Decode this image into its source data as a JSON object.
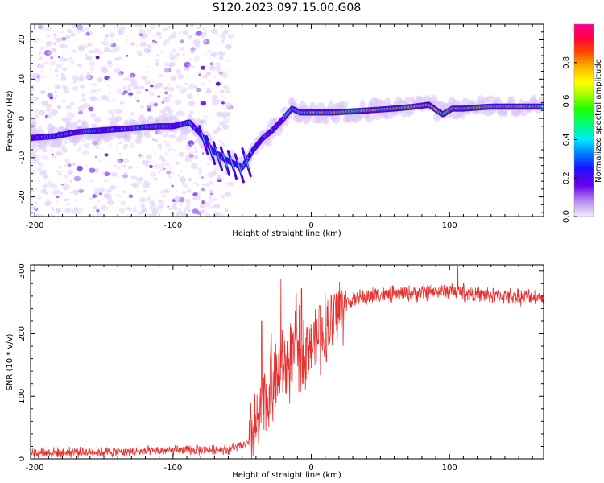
{
  "title": "S120.2023.097.15.00.G08",
  "chart_data": [
    {
      "type": "heatmap",
      "xlabel": "Height of straight line (km)",
      "ylabel": "Frequency (Hz)",
      "xlim": [
        -203,
        168
      ],
      "ylim": [
        -25,
        24
      ],
      "xticks": [
        -200,
        -100,
        0,
        100
      ],
      "xtick_labels": [
        "-200",
        "-100",
        "0",
        "100"
      ],
      "yticks": [
        -20,
        -10,
        0,
        10,
        20
      ],
      "ytick_labels": [
        "-20",
        "-10",
        "0",
        "10",
        "20"
      ],
      "colorbar": {
        "label": "Normalized spectral amplitude",
        "range": [
          0,
          1
        ],
        "ticks": [
          0.0,
          0.2,
          0.4,
          0.6,
          0.8
        ],
        "tick_labels": [
          "0.0",
          "0.2",
          "0.4",
          "0.6",
          "0.8"
        ]
      },
      "ridge": {
        "x": [
          -203,
          -185,
          -170,
          -150,
          -130,
          -110,
          -100,
          -88,
          -80,
          -72,
          -62,
          -50,
          -42,
          -35,
          -28,
          -20,
          -14,
          -8,
          0,
          15,
          40,
          60,
          75,
          85,
          95,
          102,
          110,
          130,
          150,
          168
        ],
        "y": [
          -5,
          -4.5,
          -3.5,
          -3,
          -2.5,
          -2,
          -2,
          -1,
          -4,
          -8,
          -10.5,
          -12.5,
          -8,
          -5,
          -3,
          0,
          2.5,
          1.5,
          1.5,
          1.5,
          2,
          2.5,
          3,
          3.5,
          1,
          2.5,
          2.5,
          3,
          3,
          3
        ]
      }
    },
    {
      "type": "line",
      "xlabel": "Height of straight line (km)",
      "ylabel": "SNR (10 * v/v)",
      "xlim": [
        -203,
        168
      ],
      "ylim": [
        0,
        310
      ],
      "xticks": [
        -200,
        -100,
        0,
        100
      ],
      "xtick_labels": [
        "-200",
        "-100",
        "0",
        "100"
      ],
      "yticks": [
        0,
        100,
        200,
        300
      ],
      "ytick_labels": [
        "0",
        "100",
        "200",
        "300"
      ],
      "color": "#e8312f",
      "trend": {
        "x": [
          -203,
          -150,
          -100,
          -60,
          -45,
          -38,
          -32,
          -25,
          -18,
          -10,
          0,
          10,
          20,
          30,
          50,
          80,
          100,
          120,
          140,
          168
        ],
        "y": [
          10,
          11,
          13,
          15,
          25,
          60,
          100,
          130,
          150,
          170,
          185,
          205,
          240,
          255,
          262,
          265,
          268,
          262,
          260,
          258
        ]
      },
      "spikes": [
        {
          "x": -36,
          "y": 220
        },
        {
          "x": -29,
          "y": 200
        },
        {
          "x": -22,
          "y": 288
        },
        {
          "x": -11,
          "y": 265
        },
        {
          "x": -7,
          "y": 272
        },
        {
          "x": 6,
          "y": 245
        },
        {
          "x": 106,
          "y": 308
        },
        {
          "x": 110,
          "y": 280
        }
      ]
    }
  ]
}
